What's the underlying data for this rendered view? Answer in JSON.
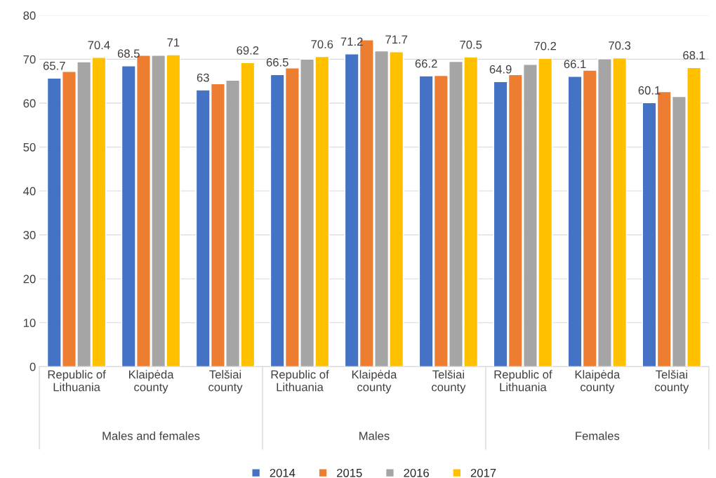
{
  "chart_data": {
    "type": "bar",
    "categories": [
      "Republic of\nLithuania",
      "Klaipėda\ncounty",
      "Telšiai\ncounty",
      "Republic of\nLithuania",
      "Klaipėda\ncounty",
      "Telšiai\ncounty",
      "Republic of\nLithuania",
      "Klaipėda\ncounty",
      "Telšiai\ncounty"
    ],
    "series": [
      {
        "name": "2014",
        "color": "#4472c4",
        "values": [
          65.7,
          68.5,
          63,
          66.5,
          71.2,
          66.2,
          64.9,
          66.1,
          60.1
        ],
        "value_labels": [
          "65.7",
          "68.5",
          "63",
          "66.5",
          "71.2",
          "66.2",
          "64.9",
          "66.1",
          "60.1"
        ]
      },
      {
        "name": "2015",
        "color": "#ed7d31",
        "values": [
          67.2,
          70.9,
          64.4,
          68.0,
          74.4,
          66.3,
          66.5,
          67.5,
          62.6
        ]
      },
      {
        "name": "2016",
        "color": "#a5a5a5",
        "values": [
          69.4,
          70.9,
          65.2,
          70.0,
          71.9,
          69.5,
          68.8,
          70.1,
          61.5
        ]
      },
      {
        "name": "2017",
        "color": "#ffc000",
        "values": [
          70.4,
          71,
          69.2,
          70.6,
          71.7,
          70.5,
          70.2,
          70.3,
          68.1
        ],
        "value_labels": [
          "70.4",
          "71",
          "69.2",
          "70.6",
          "71.7",
          "70.5",
          "70.2",
          "70.3",
          "68.1"
        ]
      }
    ],
    "annotations": [
      "Males and females",
      "Males",
      "Females"
    ],
    "ylim": [
      0,
      80
    ],
    "yticks": [
      0,
      10,
      20,
      30,
      40,
      50,
      60,
      70,
      80
    ],
    "grid": "y",
    "legend": "bottom"
  }
}
